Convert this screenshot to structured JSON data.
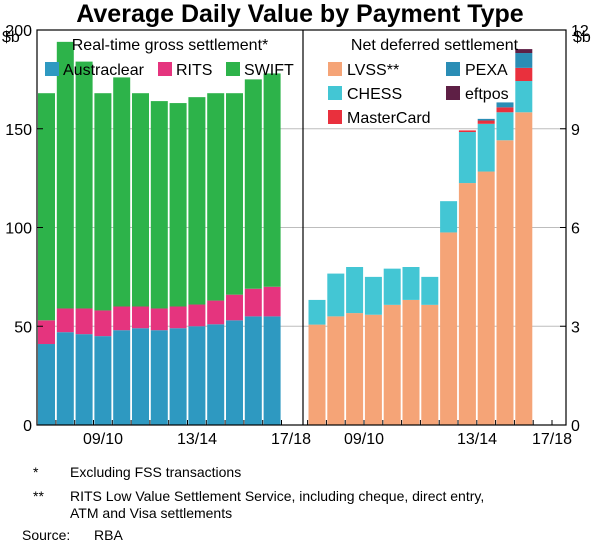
{
  "title": "Average Daily Value by Payment Type",
  "colors": {
    "austraclear": "#2e99c1",
    "rits": "#e5347e",
    "swift": "#2db34a",
    "lvss": "#f5a477",
    "chess": "#43c6d4",
    "mastercard": "#e9303d",
    "pexa": "#2a8db5",
    "eftpos": "#5e1f45"
  },
  "chart_data": [
    {
      "type": "bar",
      "stacked": true,
      "panel_title": "Real-time gross settlement*",
      "y_unit_label": "$b",
      "ylim": [
        0,
        200
      ],
      "yticks": [
        "0",
        "50",
        "100",
        "150",
        "200"
      ],
      "xtick_labels": [
        "09/10",
        "13/14",
        "17/18"
      ],
      "categories": [
        "2005/06",
        "2006/07",
        "2007/08",
        "2008/09",
        "2009/10",
        "2010/11",
        "2011/12",
        "2012/13",
        "2013/14",
        "2014/15",
        "2015/16",
        "2016/17",
        "2017/18"
      ],
      "series": [
        {
          "name": "Austraclear",
          "color_key": "austraclear",
          "values": [
            41,
            47,
            46,
            45,
            48,
            49,
            48,
            49,
            50,
            51,
            53,
            55,
            55
          ]
        },
        {
          "name": "RITS",
          "color_key": "rits",
          "values": [
            12,
            12,
            13,
            13,
            12,
            11,
            11,
            11,
            11,
            12,
            13,
            14,
            15
          ]
        },
        {
          "name": "SWIFT",
          "color_key": "swift",
          "values": [
            115,
            135,
            125,
            110,
            116,
            108,
            105,
            103,
            105,
            105,
            102,
            106,
            108
          ]
        }
      ],
      "legend": [
        [
          "Austraclear",
          "RITS",
          "SWIFT"
        ]
      ]
    },
    {
      "type": "bar",
      "stacked": true,
      "panel_title": "Net deferred settlement",
      "y_unit_label": "$b",
      "ylim": [
        0,
        12
      ],
      "yticks": [
        "0",
        "3",
        "6",
        "9",
        "12"
      ],
      "xtick_labels": [
        "09/10",
        "13/14",
        "17/18"
      ],
      "categories": [
        "2006/07",
        "2007/08",
        "2008/09",
        "2009/10",
        "2010/11",
        "2011/12",
        "2012/13",
        "2013/14",
        "2014/15",
        "2015/16",
        "2016/17",
        "2017/18",
        "2018/19"
      ],
      "series": [
        {
          "name": "LVSS**",
          "color_key": "lvss",
          "values": [
            3.05,
            3.3,
            3.4,
            3.35,
            3.65,
            3.8,
            3.65,
            5.85,
            7.35,
            7.7,
            8.65,
            9.5,
            0
          ]
        },
        {
          "name": "CHESS",
          "color_key": "chess",
          "values": [
            0.75,
            1.3,
            1.4,
            1.15,
            1.1,
            1.0,
            0.85,
            0.95,
            1.55,
            1.45,
            0.85,
            0.95,
            0
          ]
        },
        {
          "name": "MasterCard",
          "color_key": "mastercard",
          "values": [
            0,
            0,
            0,
            0,
            0,
            0,
            0,
            0,
            0.05,
            0.1,
            0.15,
            0.4,
            0
          ]
        },
        {
          "name": "PEXA",
          "color_key": "pexa",
          "values": [
            0,
            0,
            0,
            0,
            0,
            0,
            0,
            0,
            0,
            0.05,
            0.15,
            0.45,
            0
          ]
        },
        {
          "name": "eftpos",
          "color_key": "eftpos",
          "values": [
            0,
            0,
            0,
            0,
            0,
            0,
            0,
            0,
            0,
            0,
            0,
            0.12,
            0
          ]
        }
      ],
      "legend": [
        [
          "LVSS**",
          "PEXA"
        ],
        [
          "CHESS",
          "eftpos"
        ],
        [
          "MasterCard"
        ]
      ]
    }
  ],
  "notes": [
    {
      "mark": "*",
      "text": "Excluding FSS transactions"
    },
    {
      "mark": "**",
      "text": "RITS Low Value Settlement Service, including cheque, direct entry,"
    },
    {
      "mark": "",
      "text": "ATM and Visa settlements"
    }
  ],
  "source": {
    "label": "Source:",
    "text": "RBA"
  }
}
